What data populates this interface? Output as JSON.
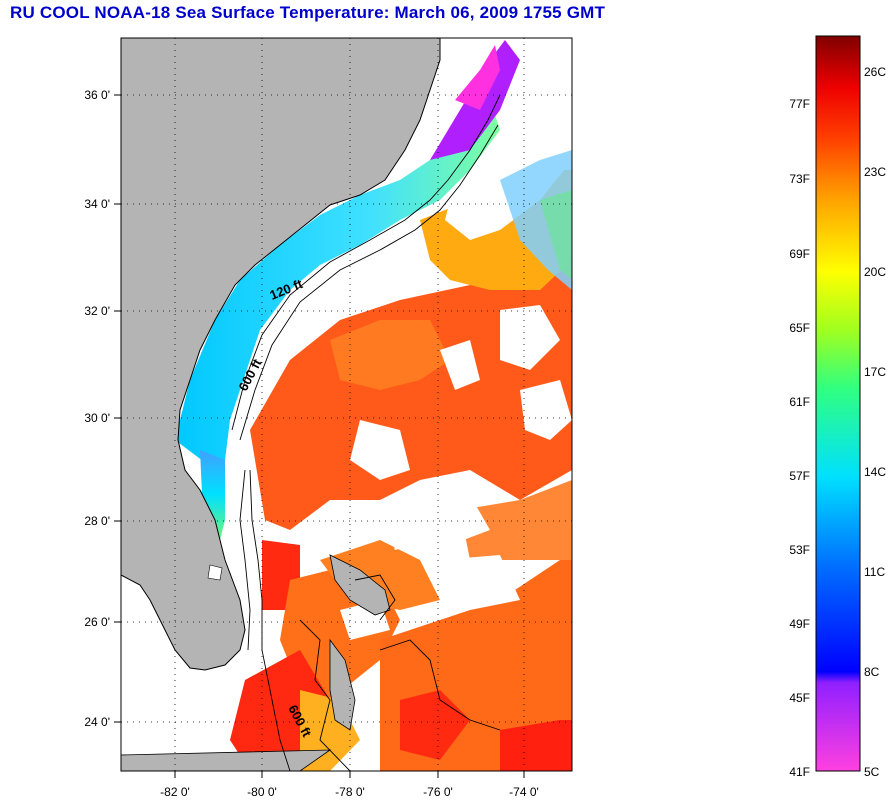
{
  "title": "RU COOL  NOAA-18  Sea Surface Temperature:  March 06, 2009 1755 GMT",
  "map": {
    "lat_labels": [
      "36 0'",
      "34 0'",
      "32 0'",
      "30 0'",
      "28 0'",
      "26 0'",
      "24 0'"
    ],
    "lon_labels": [
      "-82 0'",
      "-80 0'",
      "-78 0'",
      "-76 0'",
      "-74 0'"
    ],
    "contour_labels": [
      "120 ft",
      "600 ft",
      "600 ft"
    ],
    "colors": {
      "land": "#b4b4b4",
      "cloud": "#ffffff",
      "coast": "#000000"
    }
  },
  "colorbar": {
    "fahrenheit": [
      "77F",
      "73F",
      "69F",
      "65F",
      "61F",
      "57F",
      "53F",
      "49F",
      "45F",
      "41F"
    ],
    "celsius": [
      "26C",
      "23C",
      "20C",
      "17C",
      "14C",
      "11C",
      "8C",
      "5C"
    ]
  }
}
